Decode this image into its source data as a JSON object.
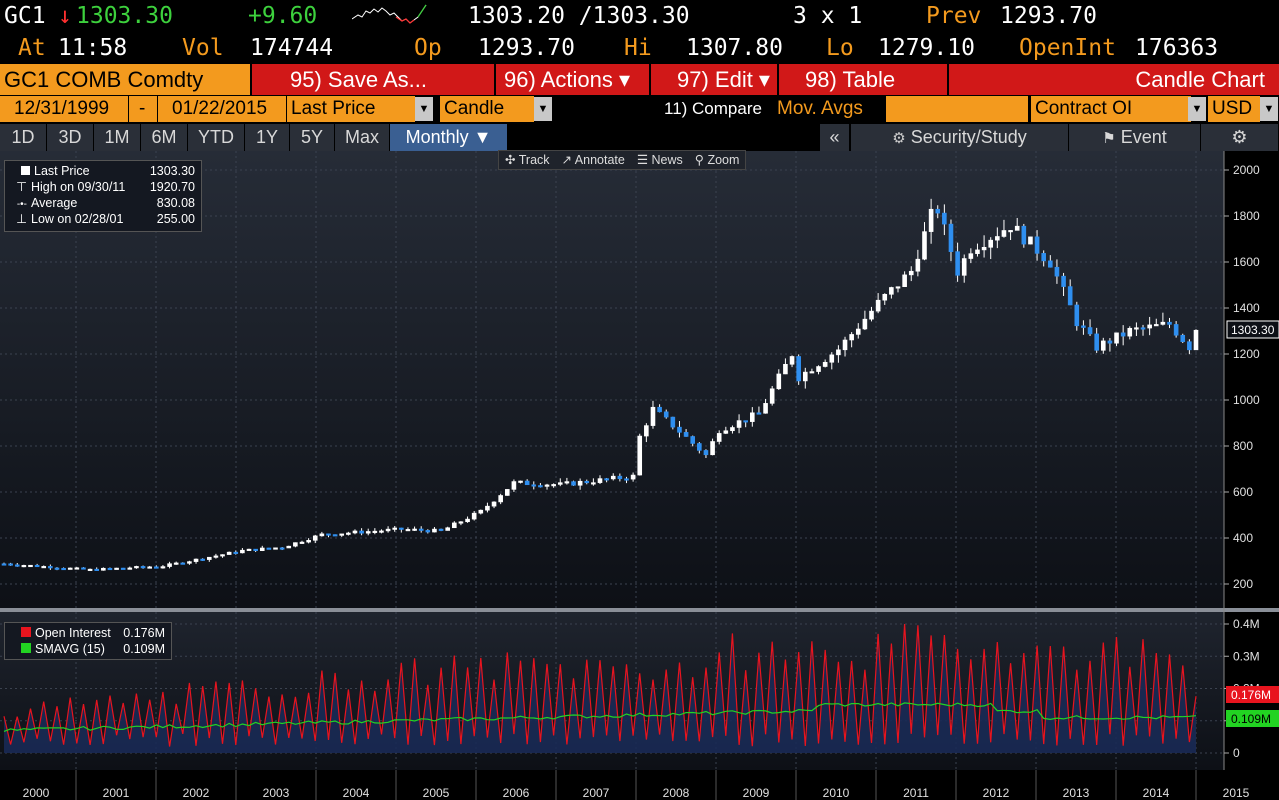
{
  "ticker": {
    "symbol": "GC1",
    "direction_glyph": "↓",
    "last": "1303.30",
    "change": "+9.60",
    "bid_ask": "1303.20 /1303.30",
    "size": "3 x 1",
    "prev_label": "Prev",
    "prev": "1293.70",
    "at_label": "At",
    "time": "11:58",
    "vol_label": "Vol",
    "vol": "174744",
    "op_label": "Op",
    "op": "1293.70",
    "hi_label": "Hi",
    "hi": "1307.80",
    "lo_label": "Lo",
    "lo": "1279.10",
    "oi_label": "OpenInt",
    "oi": "176363"
  },
  "menu": {
    "security": "GC1 COMB Comdty",
    "save": "95) Save As...",
    "actions": "96) Actions ▾",
    "edit": "97) Edit ▾",
    "table": "98) Table",
    "chart_name": "Candle Chart"
  },
  "fields": {
    "start_date": "12/31/1999",
    "dash": "-",
    "end_date": "01/22/2015",
    "price_field": "Last Price",
    "chart_type": "Candle",
    "compare": "11) Compare",
    "mov_avgs": "Mov. Avgs",
    "lower_study": "Contract OI",
    "currency": "USD"
  },
  "periods": [
    "1D",
    "3D",
    "1M",
    "6M",
    "YTD",
    "1Y",
    "5Y",
    "Max"
  ],
  "periodicity": "Monthly ▼",
  "right_tools": {
    "collapse": "«",
    "security_study": "Security/Study",
    "event": "Event",
    "settings_icon": "gear-icon"
  },
  "chart_tools": [
    "Track",
    "Annotate",
    "News",
    "Zoom"
  ],
  "price_legend": [
    {
      "label": "Last Price",
      "value": "1303.30"
    },
    {
      "label": "High on 09/30/11",
      "value": "1920.70"
    },
    {
      "label": "Average",
      "value": "830.08"
    },
    {
      "label": "Low on 02/28/01",
      "value": "255.00"
    }
  ],
  "oi_legend": [
    {
      "label": "Open Interest",
      "value": "0.176M",
      "color": "#e8141e"
    },
    {
      "label": "SMAVG (15)",
      "value": "0.109M",
      "color": "#22d322"
    }
  ],
  "last_price_tag": "1303.30",
  "oi_tag": "0.176M",
  "sma_tag": "0.109M",
  "colors": {
    "orange": "#f39a1e",
    "menu_red": "#d11818",
    "up_candle": "#ffffff",
    "down_candle": "#2f8ff0",
    "oi_line": "#e8141e",
    "sma_line": "#22d322",
    "oi_fill": "#1a2a55"
  },
  "chart_data": [
    {
      "type": "candlestick",
      "title": "",
      "xlabel": "",
      "ylabel": "",
      "yticks": [
        "2000",
        "1800",
        "1600",
        "1400",
        "1200",
        "1000",
        "800",
        "600",
        "400",
        "200"
      ],
      "xticks": [
        "2000",
        "2001",
        "2002",
        "2003",
        "2004",
        "2005",
        "2006",
        "2007",
        "2008",
        "2009",
        "2010",
        "2011",
        "2012",
        "2013",
        "2014",
        "2015"
      ],
      "ylim": [
        100,
        2040
      ],
      "x_start": "2000-01",
      "x_end": "2015-01",
      "annual_closes": {
        "2000": 273,
        "2001": 279,
        "2002": 348,
        "2003": 416,
        "2004": 438,
        "2005": 518,
        "2006": 636,
        "2007": 837,
        "2008": 884,
        "2009": 1098,
        "2010": 1421,
        "2011": 1566,
        "2012": 1676,
        "2013": 1202,
        "2014": 1184,
        "2015": 1303
      },
      "highest": {
        "date": "09/30/11",
        "value": 1920.7
      },
      "lowest": {
        "date": "02/28/01",
        "value": 255.0
      },
      "average": 830.08
    },
    {
      "type": "area",
      "title": "",
      "series": [
        {
          "name": "Open Interest",
          "last": 0.176
        },
        {
          "name": "SMAVG (15)",
          "last": 0.109
        }
      ],
      "yticks": [
        "0.4M",
        "0.3M",
        "0.2M",
        "0.1M",
        "0"
      ],
      "ylim": [
        0,
        0.42
      ]
    }
  ]
}
